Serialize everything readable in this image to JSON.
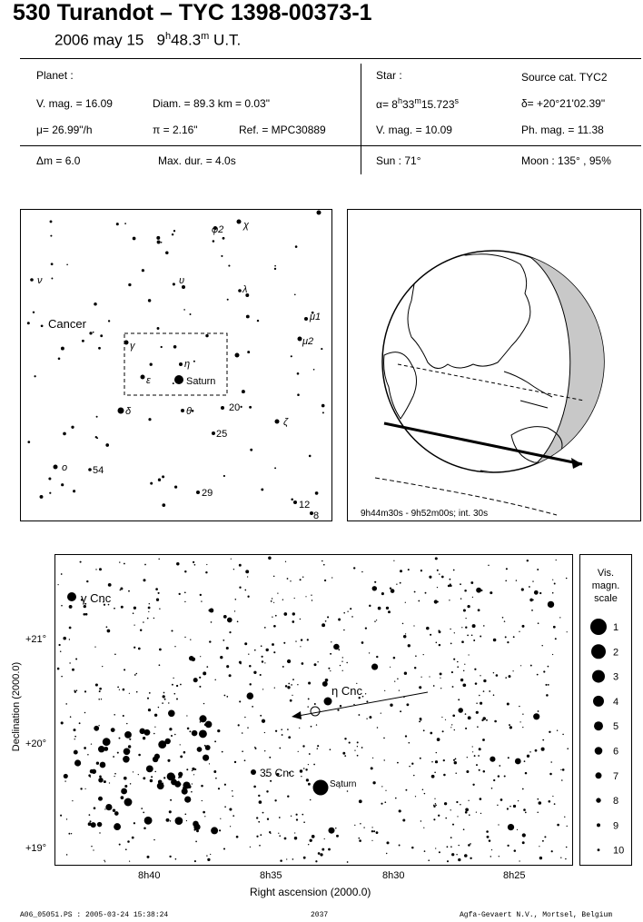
{
  "header": {
    "title": "530 Turandot  –  TYC 1398-00373-1",
    "date": "2006 may 15",
    "time_h": "9",
    "time_h_sup": "h",
    "time_m": "48.3",
    "time_m_sup": "m",
    "time_suffix": " U.T."
  },
  "planet": {
    "heading": "Planet :",
    "vmag": "V. mag. = 16.09",
    "diam": "Diam. = 89.3 km = 0.03\"",
    "mu": "μ=  26.99\"/h",
    "pi": "π =  2.16\"",
    "ref": "Ref. = MPC30889"
  },
  "star": {
    "heading": "Star :",
    "source": "Source cat.  TYC2",
    "alpha_prefix": "α=  8",
    "alpha_h": "h",
    "alpha_mid": "33",
    "alpha_m": "m",
    "alpha_end": "15.723",
    "alpha_s": "s",
    "delta": "δ= +20°21'02.39\"",
    "vmag": "V. mag. = 10.09",
    "phmag": "Ph. mag. = 11.38"
  },
  "event": {
    "dm": "Δm = 6.0",
    "maxdur": "Max. dur. = 4.0s",
    "sun": "Sun :  71°",
    "moon": "Moon : 135° , 95%"
  },
  "constellation_map": {
    "labels": {
      "cancer": "Cancer",
      "saturn": "Saturn",
      "gamma": "γ",
      "eta": "η",
      "epsilon": "ε",
      "delta": "δ",
      "theta": "θ",
      "zeta": "ζ",
      "lambda": "λ",
      "nu": "ν",
      "upsilon": "υ",
      "chi": "χ",
      "phi2": "φ2",
      "mu1": "μ1",
      "mu2": "μ2",
      "omicron": "ο",
      "n20": "20",
      "n25": "25",
      "n29": "29",
      "n54": "54",
      "n12": "12",
      "n8": "8"
    }
  },
  "globe": {
    "caption": "9h44m30s -  9h52m00s; int. 30s"
  },
  "detail_chart": {
    "ylabel": "Declination (2000.0)",
    "xlabel": "Right ascension (2000.0)",
    "xticks": [
      "8h40",
      "8h35",
      "8h30",
      "8h25"
    ],
    "yticks": [
      "+21°",
      "+20°",
      "+19°"
    ],
    "labels": {
      "gamma_cnc": "γ Cnc",
      "eta_cnc": "η  Cnc",
      "cnc35": "35 Cnc",
      "saturn": "Saturn"
    }
  },
  "mag_scale": {
    "title_lines": [
      "Vis.",
      "magn.",
      "scale"
    ],
    "values": [
      "1",
      "2",
      "3",
      "4",
      "5",
      "6",
      "7",
      "8",
      "9",
      "10"
    ]
  },
  "footer": {
    "left": "A06_05051.PS : 2005-03-24 15:38:24",
    "center": "2037",
    "right": "Agfa-Gevaert N.V., Mortsel, Belgium"
  }
}
